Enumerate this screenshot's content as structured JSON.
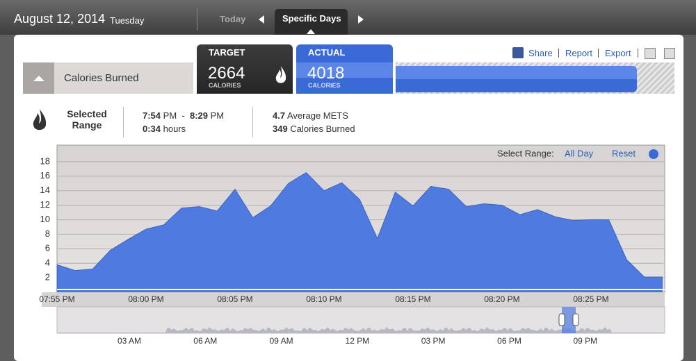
{
  "header": {
    "date": "August 12, 2014",
    "weekday": "Tuesday",
    "tabs": [
      "Today",
      "Specific Days"
    ]
  },
  "metric": {
    "name": "Calories Burned"
  },
  "links": [
    "Share",
    "Report",
    "Export"
  ],
  "target": {
    "label": "TARGET",
    "value": 2664,
    "unit": "CALORIES"
  },
  "actual": {
    "label": "ACTUAL",
    "value": 4018,
    "unit": "CALORIES"
  },
  "selection": {
    "title": "Selected Range",
    "start": "7:54",
    "start_period": "PM",
    "separator": "-",
    "end": "8:29",
    "end_period": "PM",
    "duration": "0:34",
    "duration_unit": "hours",
    "mets": 4.7,
    "mets_label": "Average METS",
    "calories": 349,
    "calories_label": "Calories Burned"
  },
  "range_controls": {
    "label": "Select Range:",
    "all_day": "All Day",
    "reset": "Reset"
  },
  "chart_data": {
    "type": "area",
    "color": "#4f7be0",
    "grid": true,
    "categories": [
      "07:55 PM",
      null,
      null,
      null,
      null,
      "08:00 PM",
      null,
      null,
      null,
      null,
      "08:05 PM",
      null,
      null,
      null,
      null,
      "08:10 PM",
      null,
      null,
      null,
      null,
      "08:15 PM",
      null,
      null,
      null,
      null,
      "08:20 PM",
      null,
      null,
      null,
      null,
      "08:25 PM",
      null,
      null,
      null,
      null
    ],
    "values": [
      3.8,
      3.0,
      3.2,
      5.8,
      7.3,
      8.7,
      9.3,
      11.6,
      11.8,
      11.2,
      14.2,
      10.3,
      11.9,
      15.0,
      16.5,
      14.0,
      15.1,
      12.8,
      7.4,
      13.8,
      11.9,
      14.6,
      14.2,
      11.8,
      12.2,
      12.0,
      10.7,
      11.4,
      10.4,
      9.9,
      10.0,
      10.0,
      4.5,
      2.1,
      2.1
    ],
    "ylim": [
      0,
      20
    ],
    "yticks": [
      2,
      4,
      6,
      8,
      10,
      12,
      14,
      16,
      18
    ]
  },
  "timeline": {
    "labels": [
      "03 AM",
      "06 AM",
      "09 AM",
      "12 PM",
      "03 PM",
      "06 PM",
      "09 PM"
    ]
  }
}
